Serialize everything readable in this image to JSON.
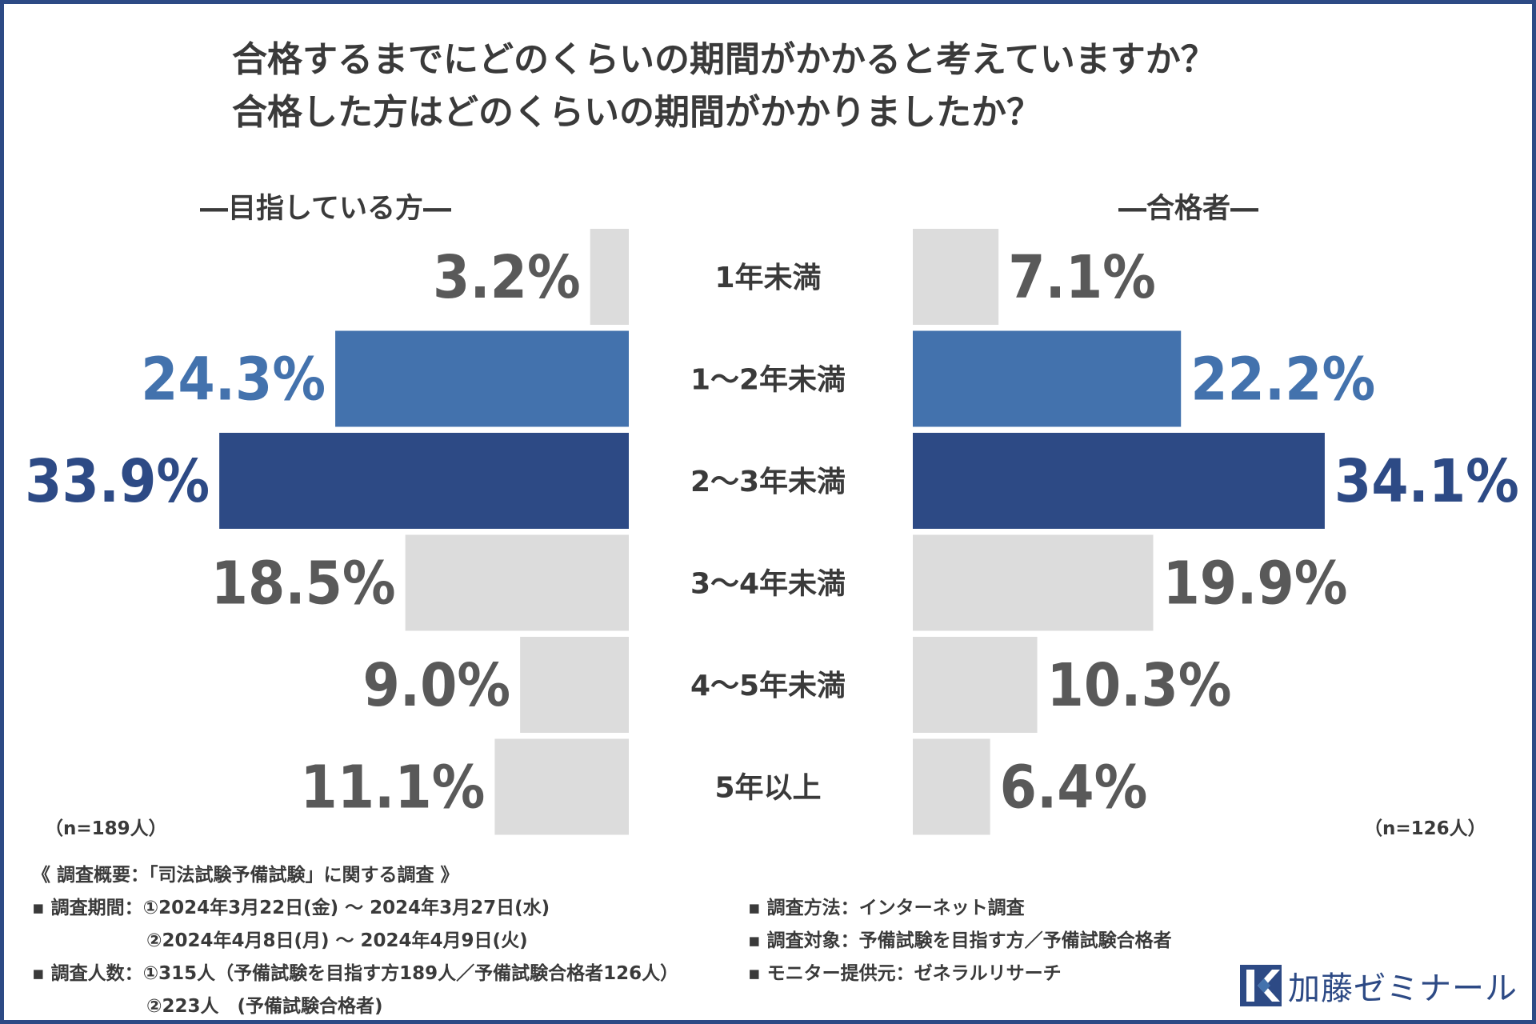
{
  "title_lines": [
    "合格するまでにどのくらいの期間がかかると考えていますか？",
    "合格した方はどのくらいの期間がかかりましたか？"
  ],
  "left_label": "―目指している方―",
  "right_label": "―合格者―",
  "left_n": "（n=189人）",
  "right_n": "（n=126人）",
  "chart_data": {
    "type": "bar",
    "orientation": "horizontal-butterfly",
    "title": "合格するまでにどのくらいの期間がかかると考えていますか？ 合格した方はどのくらいの期間がかかりましたか？",
    "categories": [
      "1年未満",
      "1〜2年未満",
      "2〜3年未満",
      "3〜4年未満",
      "4〜5年未満",
      "5年以上"
    ],
    "series": [
      {
        "name": "目指している方",
        "values": [
          3.2,
          24.3,
          33.9,
          18.5,
          9.0,
          11.1
        ],
        "labels": [
          "3.2%",
          "24.3%",
          "33.9%",
          "18.5%",
          "9.0%",
          "11.1%"
        ]
      },
      {
        "name": "合格者",
        "values": [
          7.1,
          22.2,
          34.1,
          19.9,
          10.3,
          6.4
        ],
        "labels": [
          "7.1%",
          "22.2%",
          "34.1%",
          "19.9%",
          "10.3%",
          "6.4%"
        ]
      }
    ],
    "unit": "%",
    "highlight": {
      "1〜2年未満": "#4372ad",
      "2〜3年未満": "#2d4a85"
    },
    "default_bar_color": "#dcdcdc",
    "default_label_color": "#595959",
    "xlim": [
      0,
      35
    ]
  },
  "notes": {
    "heading": "《 調査概要：「司法試験予備試験」に関する調査 》",
    "period_line1": "▪ 調査期間：①2024年3月22日(金) 〜 2024年3月27日(水)",
    "period_line2": "②2024年4月8日(月) 〜 2024年4月9日(火)",
    "count_line1": "▪ 調査人数：①315人（予備試験を目指す方189人／予備試験合格者126人）",
    "count_line2": "②223人　(予備試験合格者)",
    "method": "▪ 調査方法：インターネット調査",
    "target": "▪ 調査対象：予備試験を目指す方／予備試験合格者",
    "provider": "▪ モニター提供元：ゼネラルリサーチ"
  },
  "logo_text": "加藤ゼミナール",
  "colors": {
    "accent_dark": "#2d4a85",
    "accent_mid": "#4372ad",
    "grey_bar": "#dcdcdc",
    "text": "#3a3a3a"
  }
}
